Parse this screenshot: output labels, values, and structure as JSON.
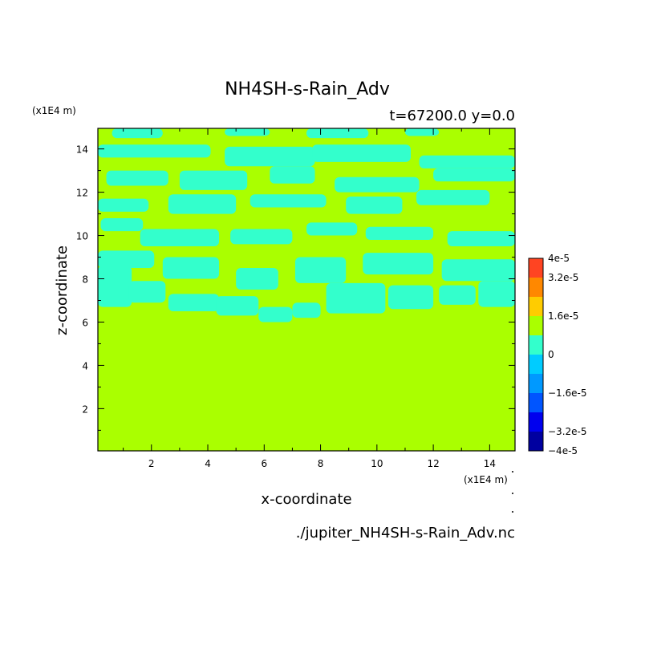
{
  "figure": {
    "title": "NH4SH-s-Rain_Adv",
    "subtitle": "t=67200.0 y=0.0",
    "footer": "./jupiter_NH4SH-s-Rain_Adv.nc"
  },
  "chart_data": {
    "type": "heatmap",
    "title": "NH4SH-s-Rain_Adv",
    "xlabel": "x-coordinate",
    "ylabel": "z-coordinate",
    "x_unit": "(x1E4 m)",
    "z_unit": "(x1E4 m)",
    "xlim": [
      0.1,
      14.9
    ],
    "ylim": [
      0.05,
      14.95
    ],
    "x_ticks": [
      "2",
      "4",
      "6",
      "8",
      "10",
      "12",
      "14"
    ],
    "y_ticks": [
      "2",
      "4",
      "6",
      "8",
      "10",
      "12",
      "14"
    ],
    "background_value": "0",
    "colors": {
      "zero_to_pos_bin": "#aaff00",
      "neg_bin": "#33ffcc"
    },
    "colorbar": {
      "levels": [
        -4e-05,
        -3.2e-05,
        -2.4e-05,
        -1.6e-05,
        -8e-06,
        0,
        8e-06,
        1.6e-05,
        2.4e-05,
        3.2e-05,
        4e-05
      ],
      "colors": [
        "#0000a0",
        "#0000ee",
        "#0055ff",
        "#0099ff",
        "#00ccff",
        "#33ffcc",
        "#aaff00",
        "#ffcc00",
        "#ff8800",
        "#ff4422",
        "#ff5555"
      ],
      "tick_labels": [
        "4e-5",
        "3.2e-5",
        "1.6e-5",
        "0",
        "−1.6e-5",
        "−3.2e-5",
        "−4e-5"
      ],
      "tick_values": [
        4e-05,
        3.2e-05,
        1.6e-05,
        0,
        -1.6e-05,
        -3.2e-05,
        -4e-05
      ]
    },
    "regions_description_value": -8e-06,
    "negative_regions": [
      {
        "x": 0.1,
        "z": 6.7,
        "w": 1.2,
        "h": 1.9
      },
      {
        "x": 1.2,
        "z": 6.9,
        "w": 1.3,
        "h": 1.0
      },
      {
        "x": 2.6,
        "z": 6.5,
        "w": 1.8,
        "h": 0.8
      },
      {
        "x": 4.3,
        "z": 6.3,
        "w": 1.5,
        "h": 0.9
      },
      {
        "x": 5.8,
        "z": 6.0,
        "w": 1.2,
        "h": 0.7
      },
      {
        "x": 7.0,
        "z": 6.2,
        "w": 1.0,
        "h": 0.7
      },
      {
        "x": 8.2,
        "z": 6.4,
        "w": 2.1,
        "h": 1.4
      },
      {
        "x": 10.4,
        "z": 6.6,
        "w": 1.6,
        "h": 1.1
      },
      {
        "x": 12.2,
        "z": 6.8,
        "w": 1.3,
        "h": 0.9
      },
      {
        "x": 13.6,
        "z": 6.7,
        "w": 1.3,
        "h": 1.2
      },
      {
        "x": 0.1,
        "z": 8.5,
        "w": 2.0,
        "h": 0.8
      },
      {
        "x": 2.4,
        "z": 8.0,
        "w": 2.0,
        "h": 1.0
      },
      {
        "x": 5.0,
        "z": 7.5,
        "w": 1.5,
        "h": 1.0
      },
      {
        "x": 7.1,
        "z": 7.8,
        "w": 1.8,
        "h": 1.2
      },
      {
        "x": 9.5,
        "z": 8.2,
        "w": 2.5,
        "h": 1.0
      },
      {
        "x": 12.3,
        "z": 7.9,
        "w": 2.6,
        "h": 1.0
      },
      {
        "x": 0.2,
        "z": 10.2,
        "w": 1.5,
        "h": 0.6
      },
      {
        "x": 1.6,
        "z": 9.5,
        "w": 2.8,
        "h": 0.8
      },
      {
        "x": 4.8,
        "z": 9.6,
        "w": 2.2,
        "h": 0.7
      },
      {
        "x": 7.5,
        "z": 10.0,
        "w": 1.8,
        "h": 0.6
      },
      {
        "x": 9.6,
        "z": 9.8,
        "w": 2.4,
        "h": 0.6
      },
      {
        "x": 12.5,
        "z": 9.5,
        "w": 2.4,
        "h": 0.7
      },
      {
        "x": 0.1,
        "z": 11.1,
        "w": 1.8,
        "h": 0.6
      },
      {
        "x": 2.6,
        "z": 11.0,
        "w": 2.4,
        "h": 0.9
      },
      {
        "x": 5.5,
        "z": 11.3,
        "w": 2.7,
        "h": 0.6
      },
      {
        "x": 8.9,
        "z": 11.0,
        "w": 2.0,
        "h": 0.8
      },
      {
        "x": 11.4,
        "z": 11.4,
        "w": 2.6,
        "h": 0.7
      },
      {
        "x": 0.4,
        "z": 12.3,
        "w": 2.2,
        "h": 0.7
      },
      {
        "x": 3.0,
        "z": 12.1,
        "w": 2.4,
        "h": 0.9
      },
      {
        "x": 6.2,
        "z": 12.4,
        "w": 1.6,
        "h": 0.8
      },
      {
        "x": 8.5,
        "z": 12.0,
        "w": 3.0,
        "h": 0.7
      },
      {
        "x": 12.0,
        "z": 12.5,
        "w": 2.9,
        "h": 0.6
      },
      {
        "x": 0.1,
        "z": 13.6,
        "w": 4.0,
        "h": 0.6
      },
      {
        "x": 4.6,
        "z": 13.2,
        "w": 3.2,
        "h": 0.9
      },
      {
        "x": 7.7,
        "z": 13.4,
        "w": 3.5,
        "h": 0.8
      },
      {
        "x": 11.5,
        "z": 13.1,
        "w": 3.4,
        "h": 0.6
      },
      {
        "x": 0.6,
        "z": 14.5,
        "w": 1.8,
        "h": 0.45
      },
      {
        "x": 4.6,
        "z": 14.6,
        "w": 1.6,
        "h": 0.35
      },
      {
        "x": 7.5,
        "z": 14.5,
        "w": 2.2,
        "h": 0.45
      },
      {
        "x": 11.0,
        "z": 14.6,
        "w": 1.2,
        "h": 0.35
      }
    ]
  }
}
